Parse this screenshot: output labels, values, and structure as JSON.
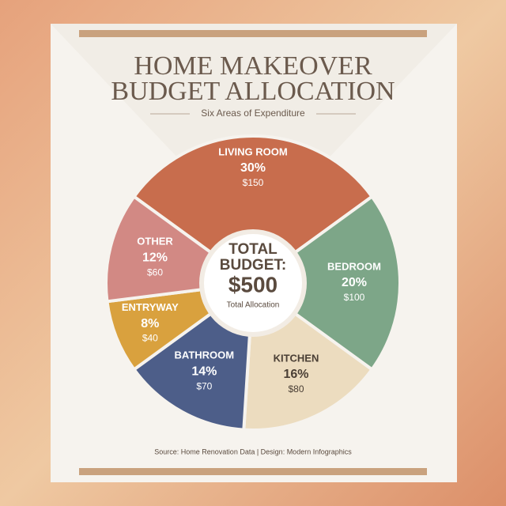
{
  "chart_data": {
    "type": "pie",
    "title_lines": [
      "HOME MAKEOVER",
      "BUDGET ALLOCATION"
    ],
    "subtitle": "Six Areas of Expenditure",
    "categories": [
      "LIVING ROOM",
      "BEDROOM",
      "KITCHEN",
      "BATHROOM",
      "ENTRYWAY",
      "OTHER"
    ],
    "values": [
      30,
      20,
      16,
      14,
      8,
      12
    ],
    "value_labels": [
      "30%",
      "20%",
      "16%",
      "14%",
      "8%",
      "12%"
    ],
    "amount_labels": [
      "$150",
      "$100",
      "$80",
      "$70",
      "$40",
      "$60"
    ],
    "colors": [
      "#c86d4d",
      "#7da688",
      "#ecdcbf",
      "#4d5e89",
      "#d9a13e",
      "#d28984"
    ],
    "center_title_lines": [
      "TOTAL",
      "BUDGET:"
    ],
    "center_value": "$500",
    "center_caption": "Total Allocation",
    "source": "Source: Home Renovation Data | Design: Modern Infographics"
  }
}
